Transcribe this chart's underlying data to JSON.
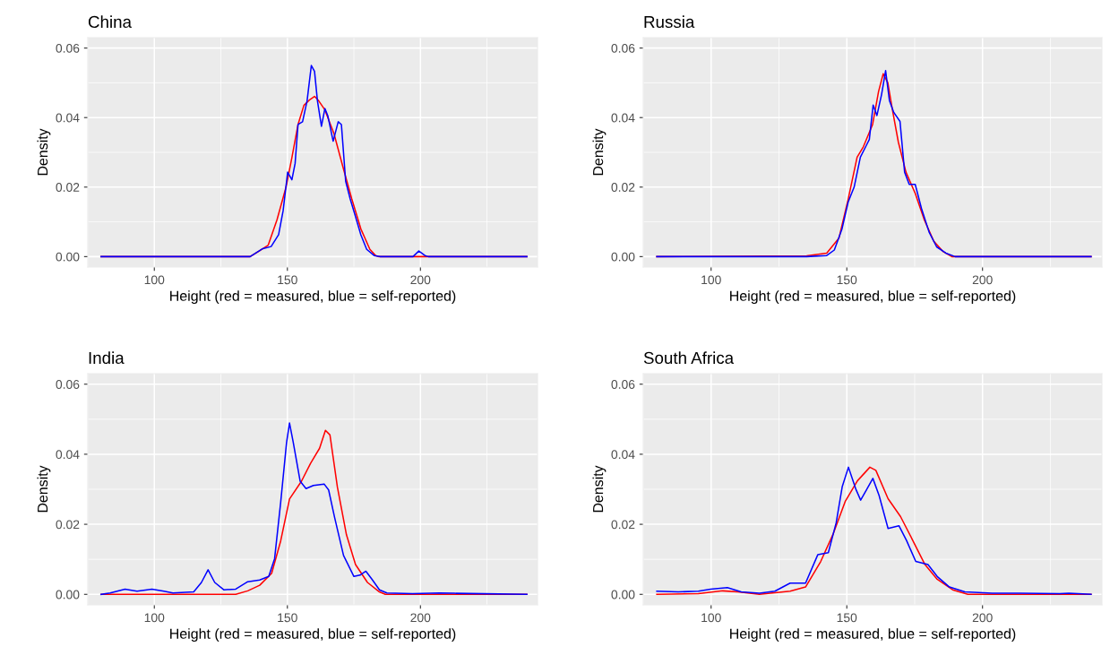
{
  "chart_data": [
    {
      "type": "line",
      "title": "China",
      "xlabel": "Height (red = measured, blue = self-reported)",
      "ylabel": "Density",
      "xlim": [
        75,
        244
      ],
      "ylim": [
        -0.003,
        0.063
      ],
      "xticks": [
        100,
        150,
        200
      ],
      "yticks": [
        {
          "value": 0,
          "label": "0.00"
        },
        {
          "value": 0.02,
          "label": "0.02"
        },
        {
          "value": 0.04,
          "label": "0.04"
        },
        {
          "value": 0.06,
          "label": "0.06"
        }
      ],
      "grid": true,
      "series": [
        {
          "color": "#ff0000",
          "x": [
            80,
            136,
            139.4,
            142.8,
            146.1,
            149.5,
            151.7,
            154,
            156.2,
            158.5,
            160.2,
            161.8,
            164.1,
            167.5,
            170.8,
            174.2,
            177.6,
            181,
            183.2,
            184.3,
            240
          ],
          "values": [
            0,
            0,
            0.0016,
            0.0033,
            0.0106,
            0.02,
            0.0285,
            0.038,
            0.0435,
            0.0452,
            0.0461,
            0.0448,
            0.0422,
            0.0354,
            0.026,
            0.0166,
            0.008,
            0.0021,
            0.0003,
            0,
            0
          ]
        },
        {
          "color": "#0000ff",
          "x": [
            80,
            136,
            140.5,
            143.9,
            146.7,
            148.4,
            150.1,
            151.7,
            152.9,
            154,
            155.7,
            157.4,
            159,
            160.2,
            161.3,
            162.8,
            164.1,
            165.2,
            167.2,
            169.1,
            170.3,
            171.9,
            173.6,
            175.3,
            177.6,
            179.8,
            182.6,
            184.8,
            197.2,
            199.4,
            201.7,
            203,
            240
          ],
          "values": [
            0,
            0,
            0.0022,
            0.0029,
            0.0063,
            0.0132,
            0.0243,
            0.0221,
            0.0268,
            0.038,
            0.0388,
            0.0448,
            0.055,
            0.0533,
            0.0448,
            0.0375,
            0.0426,
            0.0405,
            0.0332,
            0.0388,
            0.038,
            0.0217,
            0.0166,
            0.0123,
            0.0063,
            0.0021,
            0.0003,
            0,
            0,
            0.0016,
            0.0003,
            0,
            0
          ]
        }
      ]
    },
    {
      "type": "line",
      "title": "Russia",
      "xlabel": "Height (red = measured, blue = self-reported)",
      "ylabel": "Density",
      "xlim": [
        75,
        244
      ],
      "ylim": [
        -0.003,
        0.063
      ],
      "xticks": [
        100,
        150,
        200
      ],
      "yticks": [
        {
          "value": 0,
          "label": "0.00"
        },
        {
          "value": 0.02,
          "label": "0.02"
        },
        {
          "value": 0.04,
          "label": "0.04"
        },
        {
          "value": 0.06,
          "label": "0.06"
        }
      ],
      "grid": true,
      "series": [
        {
          "color": "#ff0000",
          "x": [
            80,
            135.2,
            142.6,
            147.1,
            150.5,
            153.8,
            156.1,
            159.5,
            161.7,
            163.4,
            165.1,
            166.8,
            169,
            171.8,
            175.2,
            178.6,
            182,
            185.4,
            188.7,
            240
          ],
          "values": [
            0,
            0.0002,
            0.001,
            0.0053,
            0.0165,
            0.0286,
            0.0316,
            0.038,
            0.0475,
            0.0526,
            0.0501,
            0.0423,
            0.0329,
            0.0243,
            0.0182,
            0.0105,
            0.0045,
            0.0015,
            0,
            0
          ]
        },
        {
          "color": "#0000ff",
          "x": [
            80,
            135.2,
            142.6,
            145.4,
            148.2,
            150.5,
            152.7,
            155,
            157.2,
            158.3,
            159.7,
            161.1,
            162.8,
            164.3,
            165.7,
            167.3,
            169.6,
            171.3,
            173,
            175.2,
            177.5,
            180.3,
            183.1,
            186.5,
            189.9,
            240
          ],
          "values": [
            0,
            0,
            0.0003,
            0.0019,
            0.0079,
            0.0157,
            0.02,
            0.0286,
            0.032,
            0.0337,
            0.0436,
            0.0406,
            0.0466,
            0.0535,
            0.0449,
            0.0415,
            0.0389,
            0.0243,
            0.0208,
            0.0208,
            0.0139,
            0.0071,
            0.0028,
            0.001,
            0,
            0
          ]
        }
      ]
    },
    {
      "type": "line",
      "title": "India",
      "xlabel": "Height (red = measured, blue = self-reported)",
      "ylabel": "Density",
      "xlim": [
        75,
        244
      ],
      "ylim": [
        -0.003,
        0.063
      ],
      "xticks": [
        100,
        150,
        200
      ],
      "yticks": [
        {
          "value": 0,
          "label": "0.00"
        },
        {
          "value": 0.02,
          "label": "0.02"
        },
        {
          "value": 0.04,
          "label": "0.04"
        },
        {
          "value": 0.06,
          "label": "0.06"
        }
      ],
      "grid": true,
      "series": [
        {
          "color": "#ff0000",
          "x": [
            80,
            130.6,
            135.1,
            139.6,
            144.1,
            147.5,
            150.8,
            155.3,
            158.7,
            162.1,
            164.3,
            166,
            168.8,
            172.2,
            175.6,
            180.1,
            184.6,
            186.8,
            240
          ],
          "values": [
            0,
            0,
            0.001,
            0.0026,
            0.006,
            0.0153,
            0.0272,
            0.0323,
            0.0374,
            0.0417,
            0.0468,
            0.0455,
            0.0306,
            0.017,
            0.0085,
            0.0034,
            0.0007,
            0,
            0
          ]
        },
        {
          "color": "#0000ff",
          "x": [
            80,
            83.4,
            89,
            93.5,
            99.1,
            103.6,
            107,
            114.8,
            117.7,
            120.2,
            122.7,
            126.1,
            130.6,
            135.1,
            139.6,
            143,
            145.2,
            147.5,
            149.7,
            150.8,
            152.2,
            154.8,
            157,
            159.8,
            163.8,
            165.5,
            167.7,
            171.1,
            175,
            177.3,
            179.5,
            181.8,
            184.6,
            187.4,
            197,
            207.1,
            212.7,
            240
          ],
          "values": [
            0,
            0.0004,
            0.0015,
            0.0009,
            0.0015,
            0.0009,
            0.0004,
            0.0007,
            0.0034,
            0.007,
            0.0034,
            0.0013,
            0.0015,
            0.0036,
            0.0041,
            0.0051,
            0.0102,
            0.0264,
            0.0434,
            0.0489,
            0.0434,
            0.0323,
            0.0302,
            0.0311,
            0.0315,
            0.0298,
            0.0221,
            0.0111,
            0.0051,
            0.0055,
            0.0066,
            0.0043,
            0.0013,
            0.0004,
            0.0002,
            0.0004,
            0.0003,
            0
          ]
        }
      ]
    },
    {
      "type": "line",
      "title": "South Africa",
      "xlabel": "Height (red = measured, blue = self-reported)",
      "ylabel": "Density",
      "xlim": [
        75,
        244
      ],
      "ylim": [
        -0.003,
        0.063
      ],
      "xticks": [
        100,
        150,
        200
      ],
      "yticks": [
        {
          "value": 0,
          "label": "0.00"
        },
        {
          "value": 0.02,
          "label": "0.02"
        },
        {
          "value": 0.04,
          "label": "0.04"
        },
        {
          "value": 0.06,
          "label": "0.06"
        }
      ],
      "grid": true,
      "series": [
        {
          "color": "#ff0000",
          "x": [
            80,
            95.3,
            104.3,
            109.9,
            117.8,
            129.1,
            134.8,
            140.4,
            144.9,
            149.4,
            153.9,
            158.5,
            160.7,
            165.2,
            169.8,
            174.3,
            178.8,
            183.3,
            189,
            194.6,
            240
          ],
          "values": [
            0,
            0.0002,
            0.001,
            0.0007,
            0,
            0.0009,
            0.0021,
            0.0094,
            0.0171,
            0.0265,
            0.0324,
            0.0363,
            0.0354,
            0.0273,
            0.0222,
            0.0154,
            0.0085,
            0.0043,
            0.0013,
            0,
            0
          ]
        },
        {
          "color": "#0000ff",
          "x": [
            80,
            87.9,
            95.3,
            99.8,
            106,
            111.1,
            117.8,
            123.5,
            129.1,
            134.8,
            139.3,
            143.2,
            146.1,
            148.3,
            150.6,
            153.4,
            155.1,
            157.3,
            159.6,
            161.9,
            165.2,
            169.2,
            172,
            175.4,
            179.9,
            183.3,
            187.8,
            193.5,
            203.6,
            213.8,
            228.4,
            231.8,
            240
          ],
          "values": [
            0.0009,
            0.0007,
            0.0009,
            0.0015,
            0.0019,
            0.0007,
            0.0003,
            0.0009,
            0.0032,
            0.0032,
            0.0113,
            0.0119,
            0.0205,
            0.0307,
            0.0363,
            0.0299,
            0.0269,
            0.0299,
            0.0331,
            0.0282,
            0.0188,
            0.0196,
            0.0154,
            0.0094,
            0.0085,
            0.0051,
            0.0021,
            0.0007,
            0.0003,
            0.0003,
            0.0002,
            0.0003,
            0
          ]
        }
      ]
    }
  ]
}
